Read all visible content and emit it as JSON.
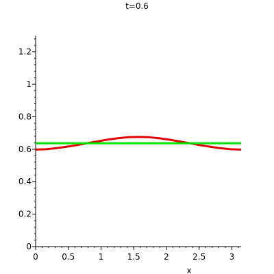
{
  "chart_data": {
    "type": "line",
    "title": "t=0.6",
    "xlabel": "x",
    "ylabel": "",
    "xlim": [
      0,
      3.14159
    ],
    "ylim": [
      0,
      1.3
    ],
    "x_ticks": [
      0,
      0.5,
      1,
      1.5,
      2,
      2.5,
      3
    ],
    "x_tick_labels": [
      "0",
      "0.5",
      "1",
      "1.5",
      "2",
      "2.5",
      "3"
    ],
    "y_ticks": [
      0,
      0.2,
      0.4,
      0.6,
      0.8,
      1,
      1.2
    ],
    "y_tick_labels": [
      "0",
      "0.2",
      "0.4",
      "0.6",
      "0.8",
      "1",
      "1.2"
    ],
    "grid": false,
    "series": [
      {
        "color": "#e00000",
        "x": [
          0,
          0.157,
          0.314,
          0.471,
          0.628,
          0.785,
          0.942,
          1.1,
          1.257,
          1.414,
          1.571,
          1.728,
          1.885,
          2.042,
          2.199,
          2.356,
          2.513,
          2.67,
          2.827,
          2.985,
          3.142
        ],
        "values": [
          0.598,
          0.6,
          0.606,
          0.615,
          0.625,
          0.637,
          0.648,
          0.659,
          0.668,
          0.674,
          0.676,
          0.674,
          0.668,
          0.659,
          0.648,
          0.637,
          0.625,
          0.615,
          0.606,
          0.6,
          0.598
        ]
      },
      {
        "color": "#00e000",
        "x": [
          0,
          3.142
        ],
        "values": [
          0.637,
          0.637
        ]
      }
    ]
  }
}
